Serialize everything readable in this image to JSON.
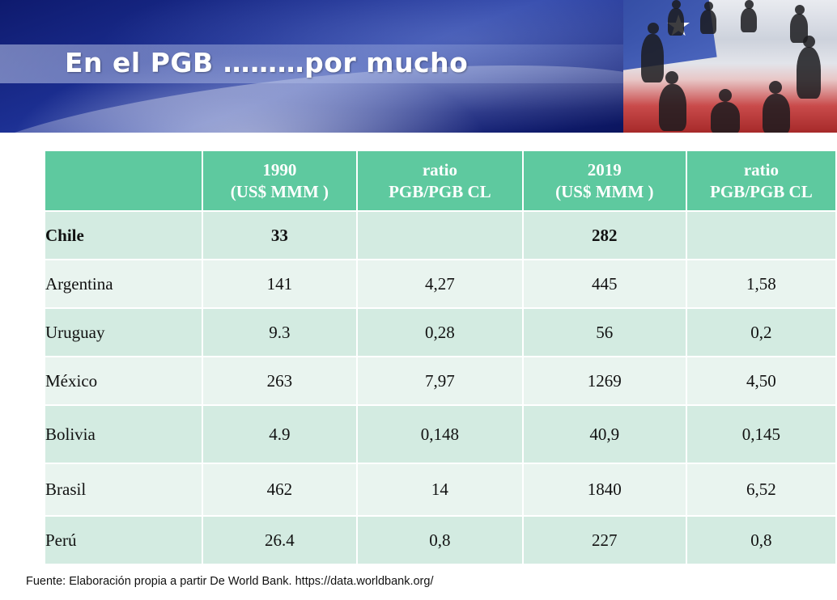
{
  "slide": {
    "title": "En el PGB ………por mucho"
  },
  "table": {
    "headers": [
      {
        "line1": "",
        "line2": ""
      },
      {
        "line1": "1990",
        "line2": "(US$ MMM )"
      },
      {
        "line1": "ratio",
        "line2": "PGB/PGB CL"
      },
      {
        "line1": "2019",
        "line2": "(US$ MMM )"
      },
      {
        "line1": "ratio",
        "line2": "PGB/PGB CL"
      }
    ],
    "rows": [
      {
        "country": "Chile",
        "gdp_1990": "33",
        "ratio_1990": "",
        "gdp_2019": "282",
        "ratio_2019": ""
      },
      {
        "country": "Argentina",
        "gdp_1990": "141",
        "ratio_1990": "4,27",
        "gdp_2019": "445",
        "ratio_2019": "1,58"
      },
      {
        "country": "Uruguay",
        "gdp_1990": "9.3",
        "ratio_1990": "0,28",
        "gdp_2019": "56",
        "ratio_2019": "0,2"
      },
      {
        "country": "México",
        "gdp_1990": "263",
        "ratio_1990": "7,97",
        "gdp_2019": "1269",
        "ratio_2019": "4,50"
      },
      {
        "country": "Bolivia",
        "gdp_1990": "4.9",
        "ratio_1990": "0,148",
        "gdp_2019": "40,9",
        "ratio_2019": "0,145"
      },
      {
        "country": "Brasil",
        "gdp_1990": "462",
        "ratio_1990": "14",
        "gdp_2019": "1840",
        "ratio_2019": "6,52"
      },
      {
        "country": "Perú",
        "gdp_1990": "26.4",
        "ratio_1990": "0,8",
        "gdp_2019": "227",
        "ratio_2019": "0,8"
      }
    ]
  },
  "footnote": "Fuente: Elaboración propia a partir De World Bank. https://data.worldbank.org/",
  "colors": {
    "header_bg": "#5ec99f",
    "row_dark": "#d3ebe1",
    "row_light": "#e9f4ef",
    "banner_blue": "#1c2f92"
  }
}
